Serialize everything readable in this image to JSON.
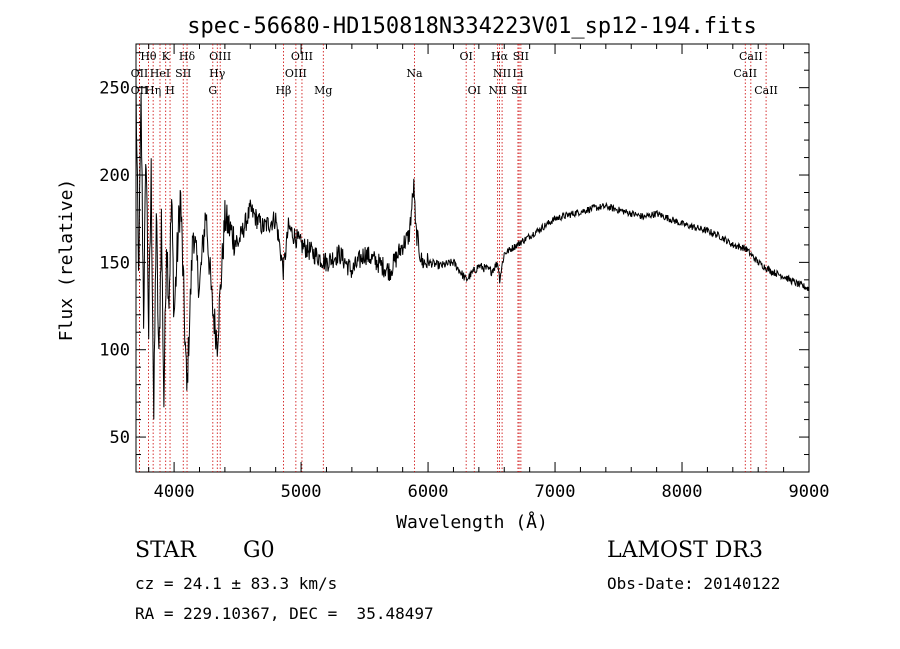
{
  "chart_data": {
    "type": "line",
    "title": "spec-56680-HD150818N334223V01_sp12-194.fits",
    "xlabel": "Wavelength (Å)",
    "ylabel": "Flux (relative)",
    "xlim": [
      3700,
      9000
    ],
    "ylim": [
      30,
      275
    ],
    "xticks": [
      4000,
      5000,
      6000,
      7000,
      8000,
      9000
    ],
    "yticks": [
      50,
      100,
      150,
      200,
      250
    ],
    "spectrum": {
      "x": [
        3700,
        3720,
        3740,
        3760,
        3780,
        3800,
        3820,
        3840,
        3860,
        3880,
        3900,
        3920,
        3940,
        3960,
        3980,
        4000,
        4050,
        4100,
        4150,
        4200,
        4250,
        4300,
        4340,
        4400,
        4500,
        4600,
        4700,
        4800,
        4861,
        4900,
        5000,
        5100,
        5200,
        5300,
        5400,
        5500,
        5600,
        5700,
        5800,
        5850,
        5890,
        5900,
        5950,
        6000,
        6100,
        6200,
        6300,
        6400,
        6500,
        6550,
        6563,
        6600,
        6700,
        6800,
        6900,
        7000,
        7100,
        7200,
        7300,
        7400,
        7500,
        7600,
        7700,
        7800,
        7900,
        8000,
        8100,
        8200,
        8300,
        8400,
        8500,
        8600,
        8700,
        8800,
        8900,
        9000
      ],
      "y": [
        250,
        140,
        240,
        120,
        215,
        110,
        200,
        60,
        180,
        90,
        175,
        70,
        165,
        130,
        185,
        120,
        190,
        75,
        170,
        135,
        180,
        125,
        105,
        175,
        160,
        180,
        170,
        175,
        145,
        170,
        160,
        155,
        150,
        155,
        145,
        155,
        150,
        145,
        160,
        165,
        195,
        170,
        150,
        150,
        148,
        150,
        140,
        148,
        145,
        150,
        140,
        155,
        160,
        165,
        170,
        175,
        177,
        179,
        181,
        182,
        180,
        178,
        176,
        178,
        175,
        172,
        170,
        168,
        165,
        160,
        158,
        150,
        145,
        142,
        138,
        135
      ]
    },
    "lines": [
      {
        "name": "Hθ",
        "wl": 3798,
        "row": 0
      },
      {
        "name": "OII",
        "wl": 3727,
        "row": 1
      },
      {
        "name": "OII",
        "wl": 3727,
        "row": 2
      },
      {
        "name": "Hη",
        "wl": 3835,
        "row": 2
      },
      {
        "name": "HeI",
        "wl": 3889,
        "row": 1
      },
      {
        "name": "SII",
        "wl": 4072,
        "row": 1
      },
      {
        "name": "K",
        "wl": 3934,
        "row": 0
      },
      {
        "name": "H",
        "wl": 3968,
        "row": 2
      },
      {
        "name": "Hδ",
        "wl": 4102,
        "row": 0
      },
      {
        "name": "OIII",
        "wl": 4363,
        "row": 0
      },
      {
        "name": "Hγ",
        "wl": 4340,
        "row": 1
      },
      {
        "name": "G",
        "wl": 4305,
        "row": 2
      },
      {
        "name": "Hβ",
        "wl": 4861,
        "row": 2
      },
      {
        "name": "OIII",
        "wl": 5007,
        "row": 0
      },
      {
        "name": "OIII",
        "wl": 4959,
        "row": 1
      },
      {
        "name": "Mg",
        "wl": 5175,
        "row": 2
      },
      {
        "name": "Na",
        "wl": 5893,
        "row": 1
      },
      {
        "name": "OI",
        "wl": 6300,
        "row": 0
      },
      {
        "name": "OI",
        "wl": 6364,
        "row": 2
      },
      {
        "name": "Hα",
        "wl": 6563,
        "row": 0
      },
      {
        "name": "NII",
        "wl": 6583,
        "row": 1
      },
      {
        "name": "NII",
        "wl": 6548,
        "row": 2
      },
      {
        "name": "SII",
        "wl": 6731,
        "row": 0
      },
      {
        "name": "Li",
        "wl": 6708,
        "row": 1
      },
      {
        "name": "SII",
        "wl": 6717,
        "row": 2
      },
      {
        "name": "CaII",
        "wl": 8542,
        "row": 0
      },
      {
        "name": "CaII",
        "wl": 8498,
        "row": 1
      },
      {
        "name": "CaII",
        "wl": 8662,
        "row": 2
      }
    ],
    "line_color": "#cc0000"
  },
  "info": {
    "class": "STAR",
    "subclass": "G0",
    "survey": "LAMOST DR3",
    "cz": "cz = 24.1 ± 83.3 km/s",
    "obs_date": "Obs-Date: 20140122",
    "coords": "RA = 229.10367, DEC =  35.48497"
  }
}
